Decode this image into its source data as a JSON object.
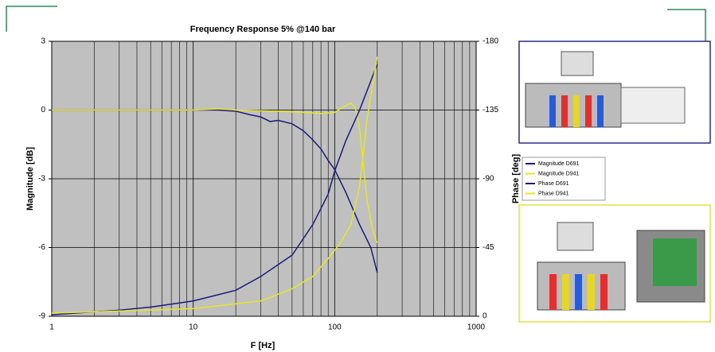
{
  "chart_data": {
    "type": "line",
    "title": "Frequency Response  5% @140 bar",
    "x_label": "F [Hz]",
    "y_label": "Magnitude [dB]",
    "y2_label": "Phase [deg]",
    "log_x": true,
    "grid": true,
    "legend": "right",
    "xlim": [
      1,
      1000
    ],
    "xticks": [
      1,
      10,
      100,
      1000
    ],
    "ylim": [
      -9,
      3
    ],
    "yticks": [
      -9,
      -6,
      -3,
      0,
      3
    ],
    "y2lim": [
      0,
      -180
    ],
    "y2ticks": [
      0,
      -45,
      -90,
      -135,
      -180
    ],
    "series": [
      {
        "name": "Magnitude D691",
        "color": "#1a1a7a",
        "x": [
          1,
          5,
          10,
          15,
          20,
          25,
          30,
          35,
          40,
          50,
          60,
          70,
          80,
          90,
          100,
          120,
          150,
          180,
          200
        ],
        "values": [
          0,
          0,
          0,
          0,
          -0.05,
          -0.2,
          -0.3,
          -0.5,
          -0.45,
          -0.6,
          -0.9,
          -1.3,
          -1.7,
          -2.2,
          -2.6,
          -3.6,
          -5.0,
          -6.0,
          -7.1
        ]
      },
      {
        "name": "Magnitude D941",
        "color": "#e6e62a",
        "x": [
          1,
          5,
          10,
          15,
          20,
          40,
          60,
          80,
          100,
          120,
          130,
          140,
          150,
          160,
          170,
          185,
          200
        ],
        "values": [
          0,
          0,
          0,
          0.05,
          0,
          -0.05,
          -0.1,
          -0.15,
          -0.1,
          0.2,
          0.3,
          0.1,
          -0.8,
          -2.5,
          -4.0,
          -5.2,
          -5.8
        ]
      },
      {
        "name": "Phase D691",
        "color": "#1a1a7a",
        "axis": "y2",
        "x": [
          1,
          3,
          5,
          10,
          20,
          30,
          50,
          70,
          90,
          100,
          120,
          150,
          200
        ],
        "values": [
          -1,
          -4,
          -6,
          -10,
          -17,
          -26,
          -40,
          -60,
          -80,
          -95,
          -115,
          -135,
          -165
        ]
      },
      {
        "name": "Phase D941",
        "color": "#e6e62a",
        "axis": "y2",
        "x": [
          1,
          10,
          30,
          50,
          70,
          90,
          110,
          130,
          150,
          170,
          200
        ],
        "values": [
          -2,
          -5,
          -10,
          -18,
          -26,
          -38,
          -48,
          -60,
          -85,
          -130,
          -170
        ]
      }
    ]
  }
}
